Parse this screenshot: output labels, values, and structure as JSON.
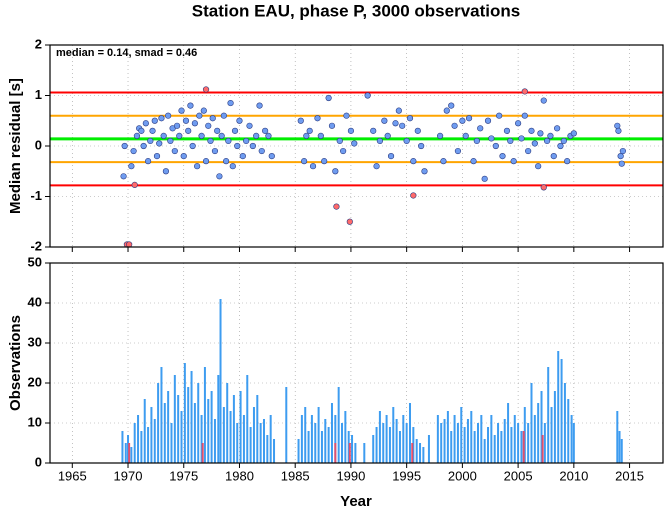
{
  "chart_data": [
    {
      "type": "scatter",
      "title": "Station EAU, phase P, 3000 observations",
      "ylabel": "Median residual [s]",
      "annotation": "median = 0.14, smad = 0.46",
      "xlim": [
        1963,
        2018
      ],
      "xticks": [
        1965,
        1970,
        1975,
        1980,
        1985,
        1990,
        1995,
        2000,
        2005,
        2010,
        2015
      ],
      "ylim": [
        -2,
        2
      ],
      "yticks": [
        -2,
        -1,
        0,
        1,
        2
      ],
      "grid": true,
      "lines": [
        {
          "value": 1.06,
          "color": "#ff0000"
        },
        {
          "value": 0.6,
          "color": "#ffa500"
        },
        {
          "value": 0.14,
          "color": "#00ee00"
        },
        {
          "value": -0.32,
          "color": "#ffa500"
        },
        {
          "value": -0.78,
          "color": "#ff0000"
        }
      ],
      "series": [
        {
          "color": "#6f9cf0",
          "x": [
            1969.6,
            1969.7,
            1970.3,
            1970.5,
            1970.8,
            1971.0,
            1971.2,
            1971.4,
            1971.6,
            1971.8,
            1972.0,
            1972.2,
            1972.4,
            1972.6,
            1972.8,
            1973.0,
            1973.2,
            1973.4,
            1973.6,
            1973.8,
            1974.0,
            1974.2,
            1974.4,
            1974.6,
            1974.8,
            1975.0,
            1975.2,
            1975.4,
            1975.6,
            1975.8,
            1976.0,
            1976.2,
            1976.4,
            1976.6,
            1976.8,
            1977.0,
            1977.2,
            1977.4,
            1977.6,
            1977.8,
            1978.0,
            1978.2,
            1978.4,
            1978.6,
            1978.8,
            1979.0,
            1979.2,
            1979.4,
            1979.6,
            1979.8,
            1980.0,
            1980.3,
            1980.6,
            1980.9,
            1981.2,
            1981.5,
            1981.8,
            1982.0,
            1982.3,
            1982.6,
            1982.9,
            1985.5,
            1985.8,
            1986.0,
            1986.3,
            1986.6,
            1987.0,
            1987.3,
            1987.6,
            1988.0,
            1988.3,
            1988.6,
            1989.0,
            1989.3,
            1989.6,
            1990.0,
            1990.3,
            1991.5,
            1992.0,
            1992.3,
            1992.6,
            1993.0,
            1993.3,
            1993.6,
            1994.0,
            1994.3,
            1994.6,
            1995.0,
            1995.3,
            1995.6,
            1996.0,
            1996.3,
            1996.6,
            1998.0,
            1998.3,
            1998.6,
            1999.0,
            1999.3,
            1999.6,
            2000.0,
            2000.3,
            2000.6,
            2001.0,
            2001.3,
            2001.6,
            2002.0,
            2002.3,
            2002.6,
            2003.0,
            2003.3,
            2003.6,
            2004.0,
            2004.3,
            2004.6,
            2005.0,
            2005.3,
            2005.6,
            2005.9,
            2006.2,
            2006.5,
            2006.8,
            2007.0,
            2007.3,
            2007.6,
            2007.9,
            2008.2,
            2008.5,
            2008.8,
            2009.1,
            2009.4,
            2009.7,
            2010.0,
            2013.9,
            2014.0,
            2014.2,
            2014.3,
            2014.4
          ],
          "values": [
            -0.6,
            0.0,
            -0.4,
            -0.1,
            0.2,
            0.35,
            0.3,
            0.0,
            0.45,
            -0.3,
            0.1,
            0.3,
            0.5,
            -0.2,
            0.05,
            0.55,
            0.2,
            -0.5,
            0.6,
            0.1,
            0.35,
            -0.1,
            0.4,
            0.2,
            0.7,
            -0.2,
            0.5,
            0.3,
            0.8,
            0.0,
            0.45,
            -0.4,
            0.6,
            0.2,
            0.7,
            -0.3,
            0.4,
            0.1,
            0.55,
            -0.1,
            0.3,
            -0.6,
            0.2,
            0.6,
            -0.3,
            0.1,
            0.85,
            -0.4,
            0.3,
            0.0,
            0.5,
            -0.2,
            0.1,
            0.4,
            0.0,
            0.2,
            0.8,
            -0.1,
            0.3,
            0.2,
            -0.2,
            0.5,
            -0.3,
            0.2,
            0.3,
            -0.4,
            0.55,
            0.2,
            -0.3,
            0.95,
            0.4,
            -0.5,
            0.1,
            -0.1,
            0.6,
            0.3,
            0.05,
            1.0,
            0.3,
            -0.4,
            0.1,
            0.5,
            0.2,
            -0.2,
            0.45,
            0.7,
            0.4,
            0.1,
            0.55,
            -0.3,
            0.3,
            0.0,
            -0.5,
            0.2,
            -0.3,
            0.7,
            0.8,
            0.4,
            -0.1,
            0.5,
            0.2,
            0.55,
            -0.3,
            0.1,
            0.35,
            -0.65,
            0.5,
            0.15,
            0.0,
            0.6,
            -0.2,
            0.3,
            0.1,
            -0.3,
            0.45,
            0.15,
            0.6,
            -0.1,
            0.3,
            0.05,
            -0.4,
            0.25,
            0.9,
            0.1,
            0.2,
            -0.2,
            0.35,
            0.0,
            0.1,
            -0.3,
            0.2,
            0.25,
            0.4,
            0.3,
            -0.2,
            -0.35,
            -0.1
          ]
        },
        {
          "color": "#ff6a6a",
          "x": [
            1969.9,
            1970.1,
            1970.6,
            1977.0,
            1988.7,
            1989.9,
            1995.6,
            2005.6,
            2007.3
          ],
          "values": [
            -1.95,
            -1.95,
            -0.77,
            1.12,
            -1.2,
            -1.5,
            -0.98,
            1.08,
            -0.82
          ]
        }
      ]
    },
    {
      "type": "bar",
      "xlabel": "Year",
      "ylabel": "Observations",
      "xlim": [
        1963,
        2018
      ],
      "xticks": [
        1965,
        1970,
        1975,
        1980,
        1985,
        1990,
        1995,
        2000,
        2005,
        2010,
        2015
      ],
      "ylim": [
        0,
        50
      ],
      "yticks": [
        0,
        10,
        20,
        30,
        40,
        50
      ],
      "grid": true,
      "series": [
        {
          "color": "#3d9cf0",
          "x": [
            1969.5,
            1969.8,
            1970.0,
            1970.3,
            1970.6,
            1970.9,
            1971.2,
            1971.5,
            1971.8,
            1972.1,
            1972.4,
            1972.7,
            1973.0,
            1973.3,
            1973.6,
            1973.9,
            1974.2,
            1974.5,
            1974.8,
            1975.1,
            1975.4,
            1975.7,
            1976.0,
            1976.3,
            1976.6,
            1976.9,
            1977.2,
            1977.5,
            1977.8,
            1978.1,
            1978.3,
            1978.6,
            1978.9,
            1979.2,
            1979.5,
            1979.8,
            1980.1,
            1980.4,
            1980.7,
            1981.0,
            1981.3,
            1981.6,
            1981.9,
            1982.2,
            1982.5,
            1982.8,
            1983.1,
            1984.2,
            1985.3,
            1985.6,
            1985.9,
            1986.2,
            1986.5,
            1986.8,
            1987.1,
            1987.4,
            1987.7,
            1988.0,
            1988.3,
            1988.6,
            1988.9,
            1989.2,
            1989.5,
            1989.8,
            1990.1,
            1990.4,
            1991.2,
            1992.0,
            1992.3,
            1992.6,
            1992.9,
            1993.2,
            1993.5,
            1993.8,
            1994.1,
            1994.4,
            1994.7,
            1995.0,
            1995.3,
            1995.6,
            1995.9,
            1996.2,
            1996.5,
            1997.0,
            1997.8,
            1998.1,
            1998.4,
            1998.7,
            1999.0,
            1999.3,
            1999.6,
            1999.9,
            2000.2,
            2000.5,
            2000.8,
            2001.1,
            2001.4,
            2001.7,
            2002.0,
            2002.3,
            2002.6,
            2002.9,
            2003.2,
            2003.5,
            2003.8,
            2004.1,
            2004.4,
            2004.7,
            2005.0,
            2005.3,
            2005.6,
            2005.9,
            2006.2,
            2006.5,
            2006.8,
            2007.1,
            2007.4,
            2007.7,
            2008.0,
            2008.3,
            2008.6,
            2008.9,
            2009.2,
            2009.5,
            2009.8,
            2010.0,
            2013.9,
            2014.1,
            2014.3
          ],
          "values": [
            8,
            5,
            7,
            4,
            10,
            12,
            8,
            16,
            9,
            14,
            11,
            20,
            24,
            15,
            18,
            10,
            22,
            17,
            13,
            25,
            19,
            23,
            15,
            20,
            12,
            24,
            16,
            18,
            11,
            22,
            41,
            14,
            20,
            13,
            17,
            10,
            18,
            12,
            22,
            9,
            14,
            17,
            10,
            11,
            7,
            12,
            6,
            19,
            6,
            12,
            14,
            8,
            12,
            10,
            14,
            8,
            11,
            9,
            15,
            12,
            19,
            10,
            13,
            8,
            7,
            5,
            5,
            7,
            9,
            13,
            10,
            12,
            9,
            14,
            11,
            8,
            12,
            10,
            15,
            9,
            6,
            5,
            4,
            7,
            12,
            10,
            11,
            13,
            8,
            12,
            10,
            14,
            9,
            11,
            13,
            8,
            10,
            12,
            6,
            9,
            12,
            7,
            10,
            8,
            11,
            15,
            9,
            12,
            10,
            8,
            14,
            10,
            20,
            12,
            15,
            18,
            10,
            24,
            14,
            18,
            28,
            26,
            20,
            16,
            12,
            10,
            13,
            8,
            6
          ]
        },
        {
          "color": "#e0506e",
          "x": [
            1970.1,
            1976.7,
            1988.6,
            1989.9,
            1995.5,
            2005.5,
            2007.2
          ],
          "values": [
            5,
            5,
            5,
            5,
            5,
            8,
            7
          ]
        }
      ]
    }
  ]
}
